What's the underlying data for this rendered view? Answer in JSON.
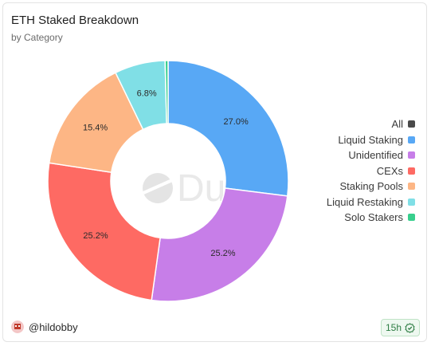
{
  "title": "ETH Staked Breakdown",
  "subtitle": "by Category",
  "watermark": "Dune",
  "footer": {
    "user": "@hildobby",
    "refresh": "15h"
  },
  "legend": [
    {
      "label": "All",
      "color": "#4a4a4a"
    },
    {
      "label": "Liquid Staking",
      "color": "#58a8f5"
    },
    {
      "label": "Unidentified",
      "color": "#c77ee8"
    },
    {
      "label": "CEXs",
      "color": "#fe6a63"
    },
    {
      "label": "Staking Pools",
      "color": "#fdb685"
    },
    {
      "label": "Liquid Restaking",
      "color": "#80dfe6"
    },
    {
      "label": "Solo Stakers",
      "color": "#38cf8d"
    }
  ],
  "chart_data": {
    "type": "pie",
    "categories": [
      "Liquid Staking",
      "Unidentified",
      "CEXs",
      "Staking Pools",
      "Liquid Restaking",
      "Solo Stakers"
    ],
    "values": [
      27.0,
      25.2,
      25.2,
      15.4,
      6.8,
      0.4
    ],
    "data_labels": [
      "27.0%",
      "25.2%",
      "25.2%",
      "15.4%",
      "6.8%",
      ""
    ],
    "colors": [
      "#58a8f5",
      "#c77ee8",
      "#fe6a63",
      "#fdb685",
      "#80dfe6",
      "#38cf8d"
    ],
    "legend_position": "right"
  }
}
